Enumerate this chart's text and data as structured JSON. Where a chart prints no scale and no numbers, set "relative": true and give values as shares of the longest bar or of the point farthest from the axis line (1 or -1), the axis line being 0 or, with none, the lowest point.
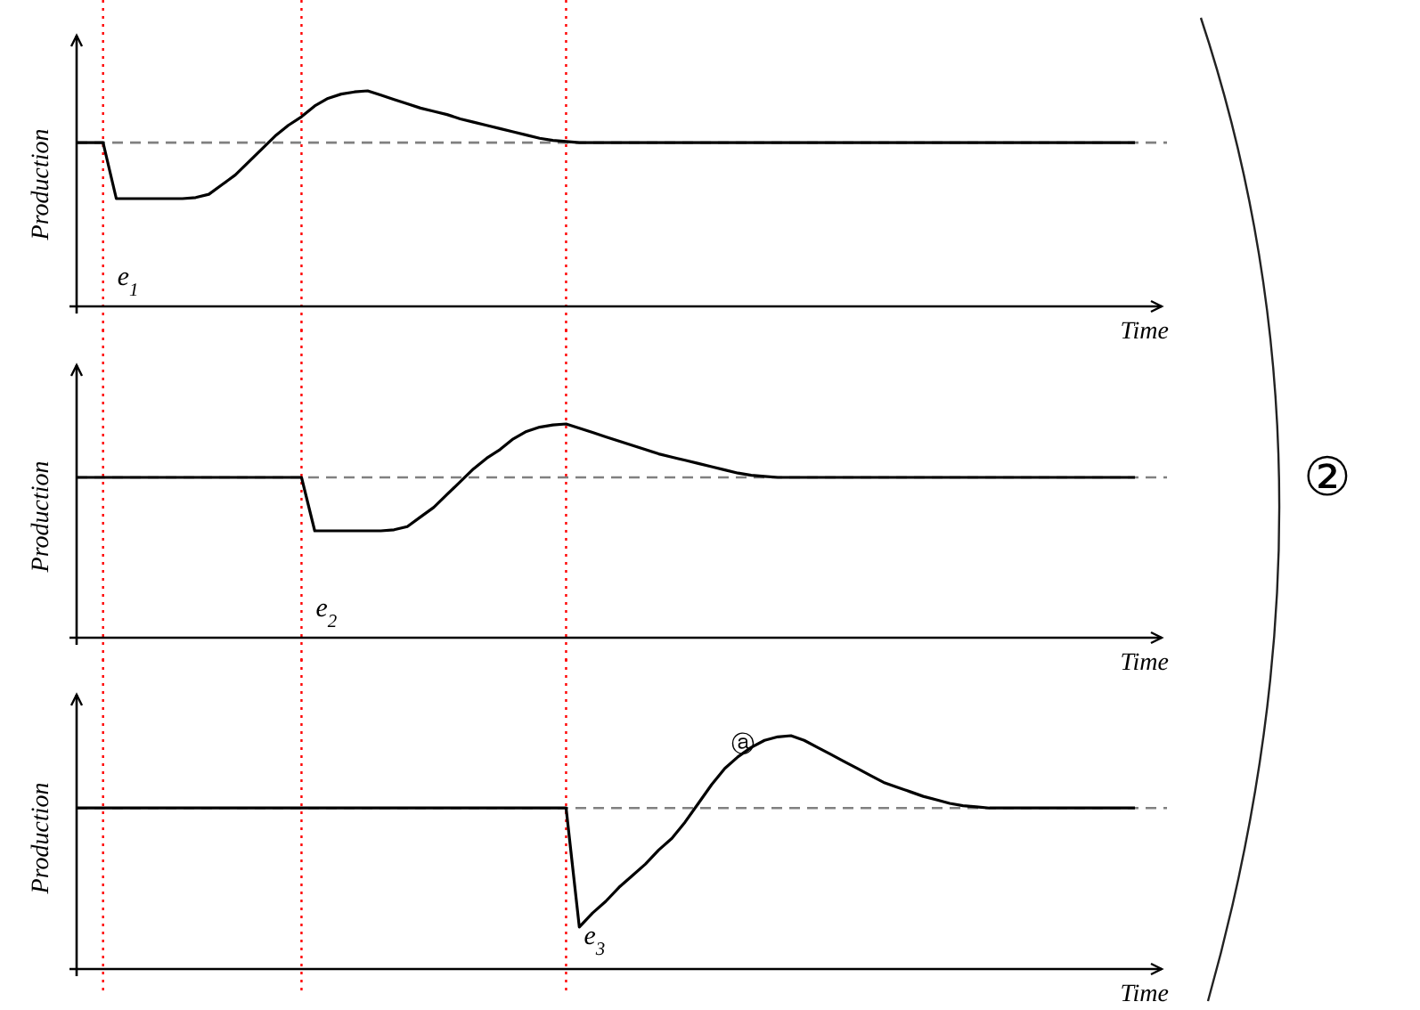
{
  "chart_data": [
    {
      "type": "line",
      "relative": true,
      "xlabel": "Time",
      "ylabel": "Production",
      "grid": "x",
      "annotations": [
        "e$_{1}$"
      ],
      "categories": [
        null,
        null,
        null,
        null,
        null,
        null,
        null,
        null,
        null,
        null,
        null,
        null,
        null,
        null,
        null,
        null,
        null,
        null,
        null,
        null,
        null,
        null,
        null,
        null,
        null,
        null,
        null,
        null,
        null,
        null,
        null,
        null,
        null,
        null,
        null,
        null,
        null,
        null,
        null,
        null,
        null,
        null,
        null,
        null,
        null,
        null,
        null,
        null,
        null,
        null,
        null,
        null,
        null,
        null,
        null,
        null,
        null,
        null,
        null,
        null,
        null,
        null,
        null,
        null,
        null,
        null,
        null,
        null,
        null,
        null,
        null,
        null,
        null,
        null,
        null,
        null,
        null,
        null,
        null,
        null,
        null
      ],
      "series": [
        {
          "color": "#000000",
          "values": [
            0.76,
            0.76,
            0.76,
            0.5,
            0.5,
            0.5,
            0.5,
            0.5,
            0.5,
            0.505,
            0.52,
            0.565,
            0.61,
            0.67,
            0.73,
            0.79,
            0.84,
            0.88,
            0.93,
            0.965,
            0.985,
            0.995,
            1.0,
            0.98,
            0.96,
            0.94,
            0.92,
            0.905,
            0.89,
            0.87,
            0.855,
            0.84,
            0.825,
            0.81,
            0.795,
            0.78,
            0.77,
            0.765,
            0.76,
            0.76,
            0.76,
            0.76,
            0.76,
            0.76,
            0.76,
            0.76,
            0.76,
            0.76,
            0.76,
            0.76,
            0.76,
            0.76,
            0.76,
            0.76,
            0.76,
            0.76,
            0.76,
            0.76,
            0.76,
            0.76,
            0.76,
            0.76,
            0.76,
            0.76,
            0.76,
            0.76,
            0.76,
            0.76,
            0.76,
            0.76,
            0.76,
            0.76,
            0.76,
            0.76,
            0.76,
            0.76,
            0.76,
            0.76,
            0.76,
            0.76,
            0.76
          ]
        }
      ],
      "ref_lines": [
        {
          "axis": "y",
          "value": 0.76,
          "color": "#808080",
          "line_style": "dashed"
        }
      ]
    },
    {
      "type": "line",
      "relative": true,
      "xlabel": "Time",
      "ylabel": "Production",
      "grid": "x",
      "annotations": [
        "e$_{2}$",
        "②"
      ],
      "categories": [
        null,
        null,
        null,
        null,
        null,
        null,
        null,
        null,
        null,
        null,
        null,
        null,
        null,
        null,
        null,
        null,
        null,
        null,
        null,
        null,
        null,
        null,
        null,
        null,
        null,
        null,
        null,
        null,
        null,
        null,
        null,
        null,
        null,
        null,
        null,
        null,
        null,
        null,
        null,
        null,
        null,
        null,
        null,
        null,
        null,
        null,
        null,
        null,
        null,
        null,
        null,
        null,
        null,
        null,
        null,
        null,
        null,
        null,
        null,
        null,
        null,
        null,
        null,
        null,
        null,
        null,
        null,
        null,
        null,
        null,
        null,
        null,
        null,
        null,
        null,
        null,
        null,
        null,
        null,
        null,
        null
      ],
      "series": [
        {
          "color": "#000000",
          "values": [
            0.75,
            0.75,
            0.75,
            0.75,
            0.75,
            0.75,
            0.75,
            0.75,
            0.75,
            0.75,
            0.75,
            0.75,
            0.75,
            0.75,
            0.75,
            0.75,
            0.75,
            0.75,
            0.5,
            0.5,
            0.5,
            0.5,
            0.5,
            0.5,
            0.505,
            0.52,
            0.565,
            0.61,
            0.67,
            0.73,
            0.79,
            0.84,
            0.88,
            0.93,
            0.965,
            0.985,
            0.995,
            1.0,
            0.98,
            0.96,
            0.94,
            0.92,
            0.9,
            0.88,
            0.86,
            0.845,
            0.83,
            0.815,
            0.8,
            0.785,
            0.77,
            0.76,
            0.755,
            0.75,
            0.75,
            0.75,
            0.75,
            0.75,
            0.75,
            0.75,
            0.75,
            0.75,
            0.75,
            0.75,
            0.75,
            0.75,
            0.75,
            0.75,
            0.75,
            0.75,
            0.75,
            0.75,
            0.75,
            0.75,
            0.75,
            0.75,
            0.75,
            0.75,
            0.75,
            0.75,
            0.75
          ]
        }
      ],
      "ref_lines": [
        {
          "axis": "y",
          "value": 0.75,
          "color": "#808080",
          "line_style": "dashed"
        }
      ]
    },
    {
      "type": "line",
      "relative": true,
      "xlabel": "Time",
      "ylabel": "Production",
      "grid": "x",
      "annotations": [
        "e$_{3}$",
        "ⓐ"
      ],
      "categories": [
        null,
        null,
        null,
        null,
        null,
        null,
        null,
        null,
        null,
        null,
        null,
        null,
        null,
        null,
        null,
        null,
        null,
        null,
        null,
        null,
        null,
        null,
        null,
        null,
        null,
        null,
        null,
        null,
        null,
        null,
        null,
        null,
        null,
        null,
        null,
        null,
        null,
        null,
        null,
        null,
        null,
        null,
        null,
        null,
        null,
        null,
        null,
        null,
        null,
        null,
        null,
        null,
        null,
        null,
        null,
        null,
        null,
        null,
        null,
        null,
        null,
        null,
        null,
        null,
        null,
        null,
        null,
        null,
        null,
        null,
        null,
        null,
        null,
        null,
        null,
        null,
        null,
        null,
        null,
        null,
        null
      ],
      "series": [
        {
          "color": "#000000",
          "values": [
            0.69,
            0.69,
            0.69,
            0.69,
            0.69,
            0.69,
            0.69,
            0.69,
            0.69,
            0.69,
            0.69,
            0.69,
            0.69,
            0.69,
            0.69,
            0.69,
            0.69,
            0.69,
            0.69,
            0.69,
            0.69,
            0.69,
            0.69,
            0.69,
            0.69,
            0.69,
            0.69,
            0.69,
            0.69,
            0.69,
            0.69,
            0.69,
            0.69,
            0.69,
            0.69,
            0.69,
            0.69,
            0.69,
            0.18,
            0.24,
            0.29,
            0.35,
            0.4,
            0.45,
            0.51,
            0.56,
            0.63,
            0.71,
            0.79,
            0.86,
            0.91,
            0.95,
            0.98,
            0.995,
            1.0,
            0.98,
            0.95,
            0.92,
            0.89,
            0.86,
            0.83,
            0.8,
            0.78,
            0.76,
            0.74,
            0.725,
            0.71,
            0.7,
            0.695,
            0.69,
            0.69,
            0.69,
            0.69,
            0.69,
            0.69,
            0.69,
            0.69,
            0.69,
            0.69,
            0.69,
            0.69
          ]
        }
      ],
      "ref_lines": [
        {
          "axis": "y",
          "value": 0.69,
          "color": "#808080",
          "line_style": "dashed"
        }
      ]
    }
  ]
}
